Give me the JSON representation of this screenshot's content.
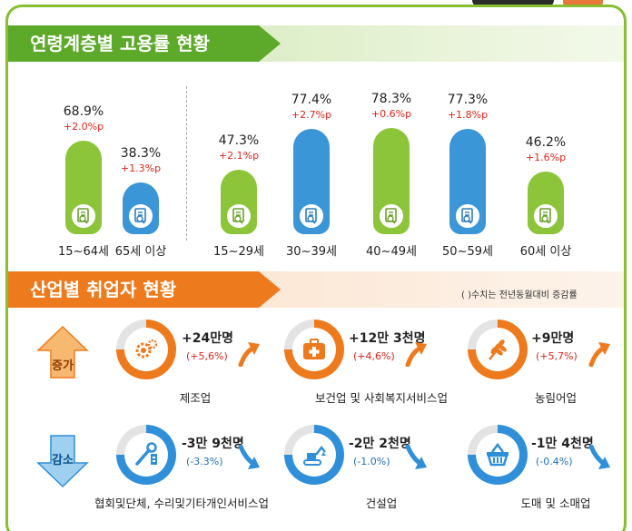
{
  "sections": {
    "employment_title": "연령계층별 고용률 현황",
    "industry_title": "산업별 취업자 현황",
    "industry_note": "( )수치는 전년동월대비 증감률"
  },
  "chart_data": {
    "type": "bar",
    "title": "연령계층별 고용률 현황",
    "categories": [
      "15~64세",
      "65세 이상",
      "15~29세",
      "30~39세",
      "40~49세",
      "50~59세",
      "60세 이상"
    ],
    "values": [
      68.9,
      38.3,
      47.3,
      77.4,
      78.3,
      77.3,
      46.2
    ],
    "value_labels": [
      "68.9%",
      "38.3%",
      "47.3%",
      "77.4%",
      "78.3%",
      "77.3%",
      "46.2%"
    ],
    "change_labels": [
      "+2.0%p",
      "+1.3%p",
      "+2.1%p",
      "+2.7%p",
      "+0.6%p",
      "+1.8%p",
      "+1.6%p"
    ],
    "colors": [
      "#8cc43a",
      "#3a96d6",
      "#8cc43a",
      "#3a96d6",
      "#8cc43a",
      "#3a96d6",
      "#8cc43a"
    ],
    "ylim": [
      0,
      100
    ]
  },
  "industry": {
    "increase_label": "증가",
    "decrease_label": "감소",
    "increase_color": "#ee7a1e",
    "decrease_color": "#2f8fd8",
    "increase": [
      {
        "name": "제조업",
        "value": "+24만명",
        "change": "(+5,6%)",
        "icon": "gear-icon"
      },
      {
        "name": "보건업 및 사회복지서비스업",
        "value": "+12만 3천명",
        "change": "(+4,6%)",
        "icon": "first-aid-kit-icon"
      },
      {
        "name": "농림어업",
        "value": "+9만명",
        "change": "(+5,7%)",
        "icon": "wheat-icon"
      }
    ],
    "decrease": [
      {
        "name": "협회및단체, 수리및기타개인서비스업",
        "value": "-3만 9천명",
        "change": "(-3.3%)",
        "icon": "tools-icon"
      },
      {
        "name": "건설업",
        "value": "-2만 2천명",
        "change": "(-1.0%)",
        "icon": "excavator-icon"
      },
      {
        "name": "도매 및 소매업",
        "value": "-1만 4천명",
        "change": "(-0.4%)",
        "icon": "basket-icon"
      }
    ]
  }
}
